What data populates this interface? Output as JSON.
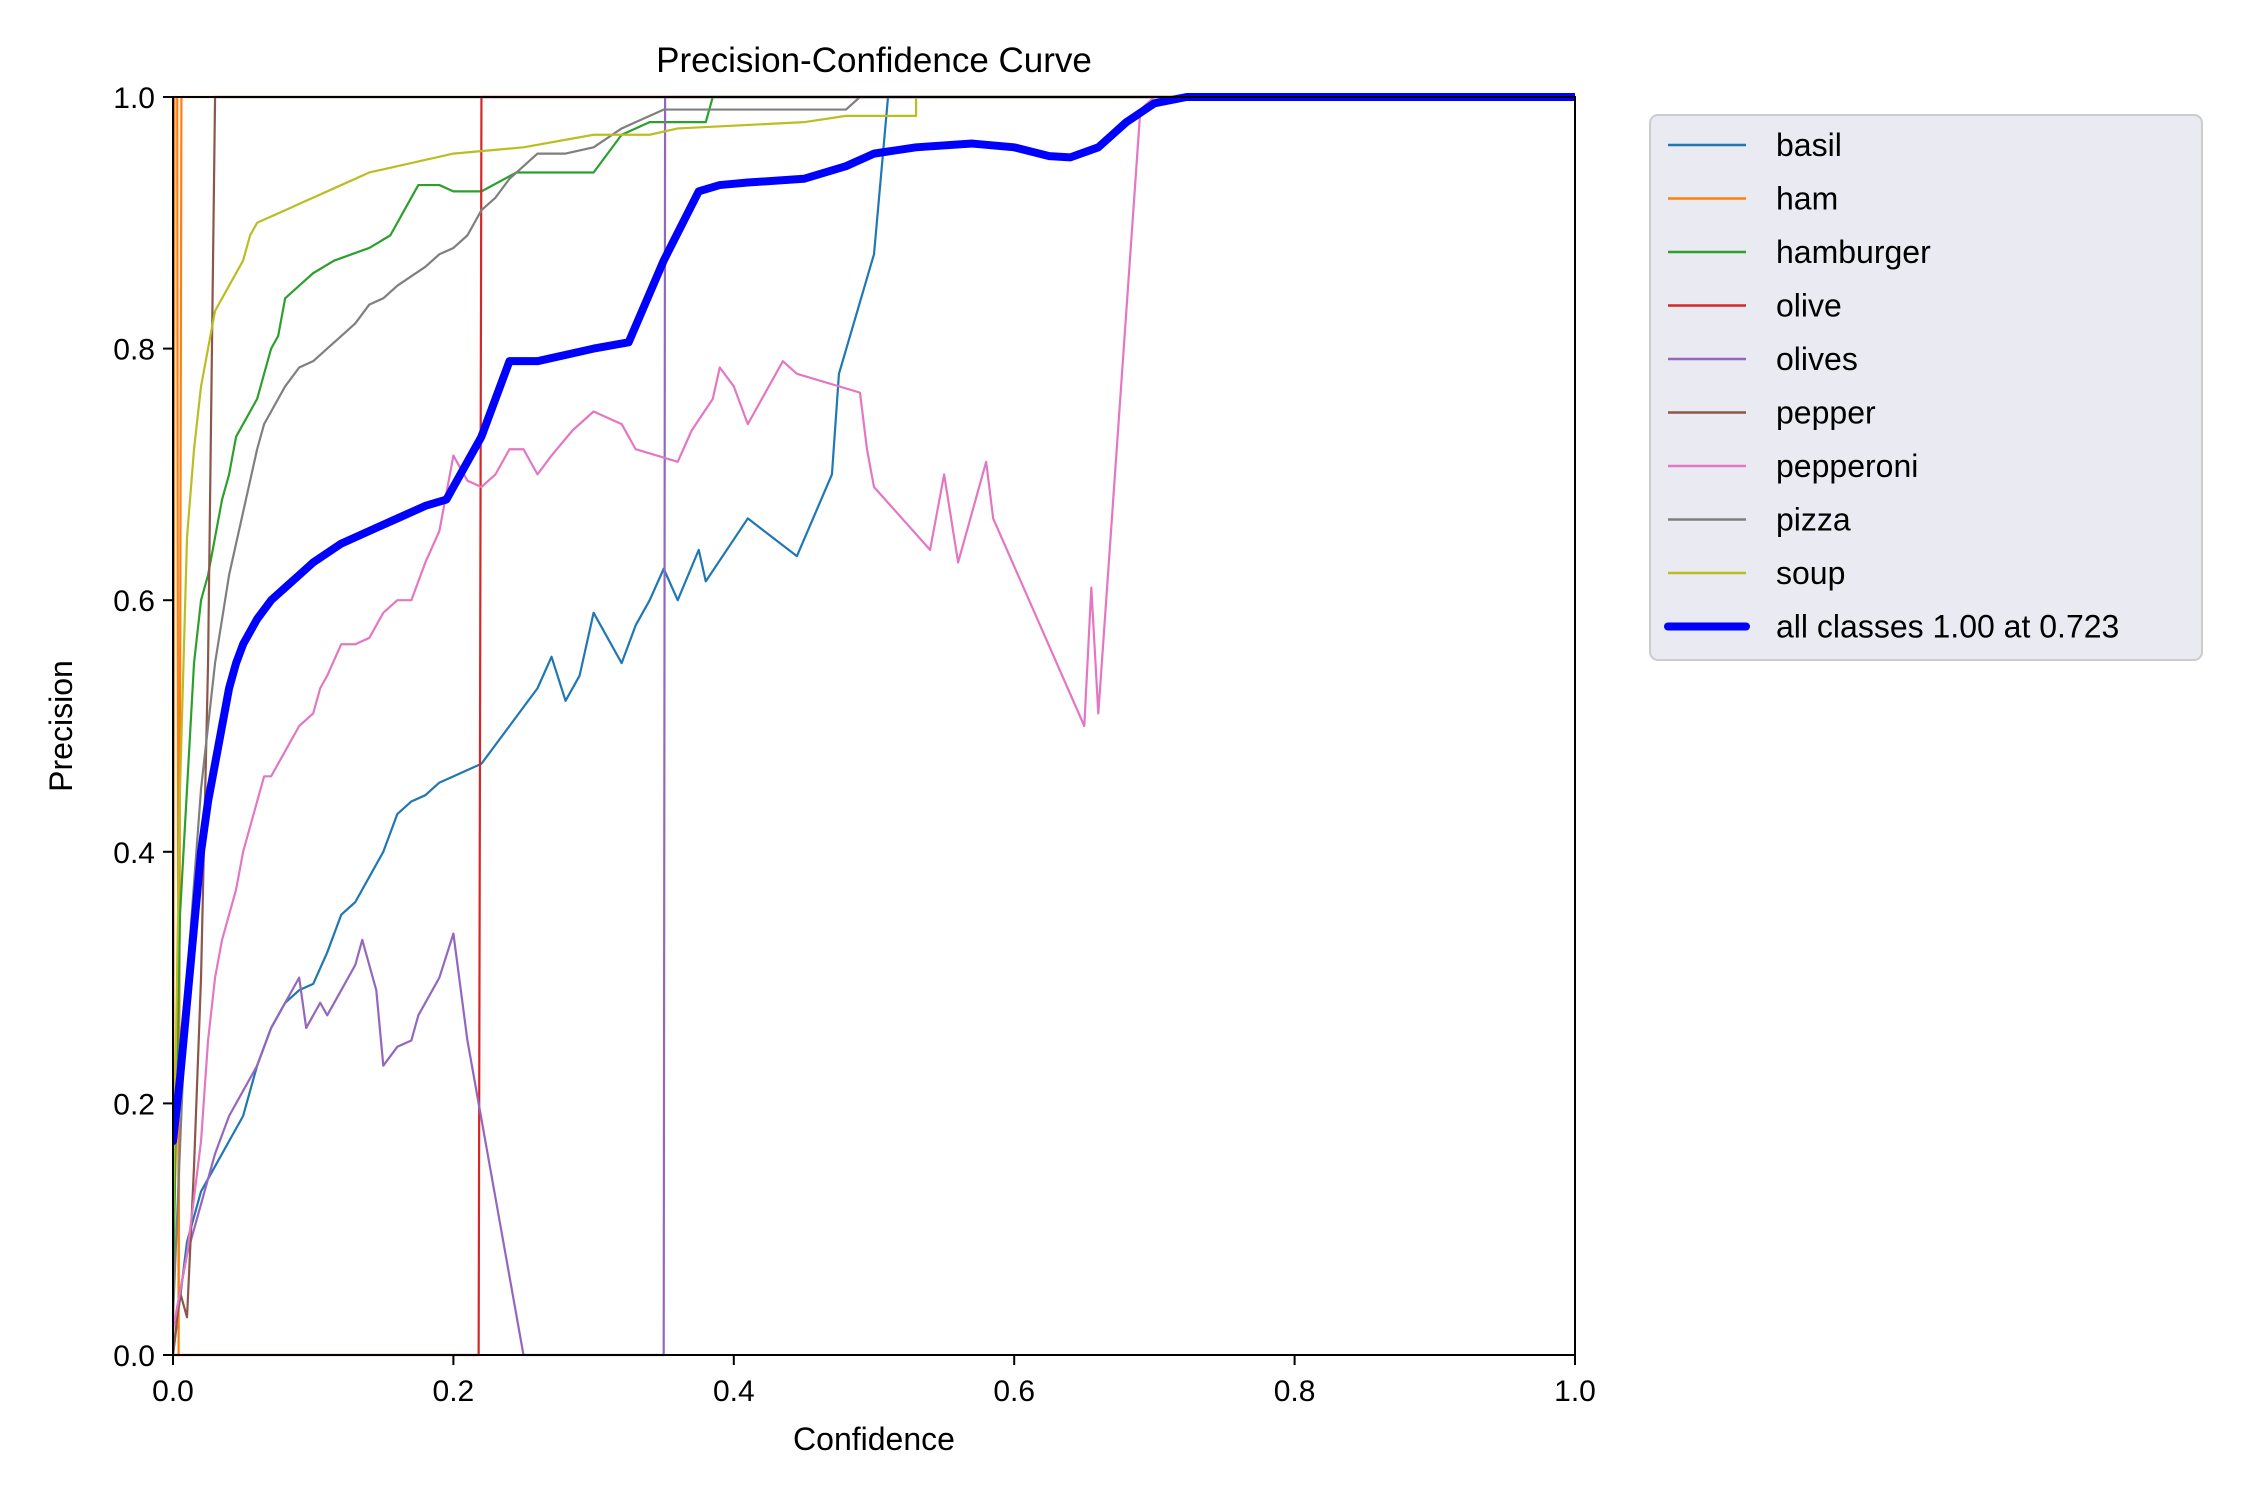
{
  "chart_data": {
    "type": "line",
    "title": "Precision-Confidence Curve",
    "xlabel": "Confidence",
    "ylabel": "Precision",
    "xlim": [
      0,
      1
    ],
    "ylim": [
      0,
      1
    ],
    "xticks": [
      "0.0",
      "0.2",
      "0.4",
      "0.6",
      "0.8",
      "1.0"
    ],
    "yticks": [
      "0.0",
      "0.2",
      "0.4",
      "0.6",
      "0.8",
      "1.0"
    ],
    "grid": false,
    "legend_position": "outside-top-right",
    "series": [
      {
        "name": "basil",
        "color": "#1f77b4",
        "points": [
          [
            0,
            0
          ],
          [
            0.01,
            0.09
          ],
          [
            0.02,
            0.13
          ],
          [
            0.03,
            0.15
          ],
          [
            0.04,
            0.17
          ],
          [
            0.05,
            0.19
          ],
          [
            0.06,
            0.23
          ],
          [
            0.07,
            0.26
          ],
          [
            0.08,
            0.28
          ],
          [
            0.09,
            0.29
          ],
          [
            0.1,
            0.295
          ],
          [
            0.11,
            0.32
          ],
          [
            0.12,
            0.35
          ],
          [
            0.13,
            0.36
          ],
          [
            0.14,
            0.38
          ],
          [
            0.15,
            0.4
          ],
          [
            0.16,
            0.43
          ],
          [
            0.17,
            0.44
          ],
          [
            0.18,
            0.445
          ],
          [
            0.19,
            0.455
          ],
          [
            0.2,
            0.46
          ],
          [
            0.22,
            0.47
          ],
          [
            0.24,
            0.5
          ],
          [
            0.26,
            0.53
          ],
          [
            0.27,
            0.555
          ],
          [
            0.28,
            0.52
          ],
          [
            0.29,
            0.54
          ],
          [
            0.3,
            0.59
          ],
          [
            0.32,
            0.55
          ],
          [
            0.33,
            0.58
          ],
          [
            0.34,
            0.6
          ],
          [
            0.35,
            0.625
          ],
          [
            0.36,
            0.6
          ],
          [
            0.375,
            0.64
          ],
          [
            0.38,
            0.615
          ],
          [
            0.41,
            0.665
          ],
          [
            0.445,
            0.635
          ],
          [
            0.47,
            0.7
          ],
          [
            0.475,
            0.78
          ],
          [
            0.5,
            0.875
          ],
          [
            0.51,
            1.0
          ],
          [
            1.0,
            1.0
          ]
        ]
      },
      {
        "name": "ham",
        "color": "#ff7f0e",
        "points": [
          [
            0,
            0
          ],
          [
            0.001,
            1.0
          ],
          [
            0.003,
            1.0
          ],
          [
            0.004,
            0
          ],
          [
            0.006,
            1.0
          ],
          [
            1.0,
            1.0
          ]
        ]
      },
      {
        "name": "hamburger",
        "color": "#2ca02c",
        "points": [
          [
            0,
            0.05
          ],
          [
            0.005,
            0.35
          ],
          [
            0.01,
            0.45
          ],
          [
            0.015,
            0.55
          ],
          [
            0.02,
            0.6
          ],
          [
            0.025,
            0.62
          ],
          [
            0.03,
            0.65
          ],
          [
            0.035,
            0.68
          ],
          [
            0.04,
            0.7
          ],
          [
            0.045,
            0.73
          ],
          [
            0.05,
            0.74
          ],
          [
            0.055,
            0.75
          ],
          [
            0.06,
            0.76
          ],
          [
            0.065,
            0.78
          ],
          [
            0.07,
            0.8
          ],
          [
            0.075,
            0.81
          ],
          [
            0.08,
            0.84
          ],
          [
            0.09,
            0.85
          ],
          [
            0.1,
            0.86
          ],
          [
            0.115,
            0.87
          ],
          [
            0.14,
            0.88
          ],
          [
            0.155,
            0.89
          ],
          [
            0.165,
            0.91
          ],
          [
            0.175,
            0.93
          ],
          [
            0.19,
            0.93
          ],
          [
            0.2,
            0.925
          ],
          [
            0.22,
            0.925
          ],
          [
            0.245,
            0.94
          ],
          [
            0.3,
            0.94
          ],
          [
            0.32,
            0.97
          ],
          [
            0.34,
            0.98
          ],
          [
            0.38,
            0.98
          ],
          [
            0.385,
            1.0
          ],
          [
            1.0,
            1.0
          ]
        ]
      },
      {
        "name": "olive",
        "color": "#d62728",
        "points": [
          [
            0,
            0
          ],
          [
            0.218,
            0
          ],
          [
            0.22,
            1.0
          ],
          [
            1.0,
            1.0
          ]
        ]
      },
      {
        "name": "olives",
        "color": "#9467bd",
        "points": [
          [
            0,
            0.02
          ],
          [
            0.01,
            0.08
          ],
          [
            0.02,
            0.12
          ],
          [
            0.03,
            0.16
          ],
          [
            0.04,
            0.19
          ],
          [
            0.05,
            0.21
          ],
          [
            0.06,
            0.23
          ],
          [
            0.07,
            0.26
          ],
          [
            0.08,
            0.28
          ],
          [
            0.09,
            0.3
          ],
          [
            0.095,
            0.26
          ],
          [
            0.105,
            0.28
          ],
          [
            0.11,
            0.27
          ],
          [
            0.12,
            0.29
          ],
          [
            0.13,
            0.31
          ],
          [
            0.135,
            0.33
          ],
          [
            0.145,
            0.29
          ],
          [
            0.15,
            0.23
          ],
          [
            0.16,
            0.245
          ],
          [
            0.17,
            0.25
          ],
          [
            0.175,
            0.27
          ],
          [
            0.19,
            0.3
          ],
          [
            0.2,
            0.335
          ],
          [
            0.21,
            0.25
          ],
          [
            0.25,
            0
          ],
          [
            0.35,
            0
          ],
          [
            0.351,
            1.0
          ],
          [
            1.0,
            1.0
          ]
        ]
      },
      {
        "name": "pepper",
        "color": "#8c564b",
        "points": [
          [
            0,
            0
          ],
          [
            0.005,
            0.05
          ],
          [
            0.01,
            0.03
          ],
          [
            0.015,
            0.15
          ],
          [
            0.02,
            0.3
          ],
          [
            0.025,
            0.55
          ],
          [
            0.03,
            1.0
          ],
          [
            1.0,
            1.0
          ]
        ]
      },
      {
        "name": "pepperoni",
        "color": "#e377c2",
        "points": [
          [
            0,
            0.02
          ],
          [
            0.01,
            0.08
          ],
          [
            0.02,
            0.17
          ],
          [
            0.025,
            0.25
          ],
          [
            0.03,
            0.3
          ],
          [
            0.035,
            0.33
          ],
          [
            0.04,
            0.35
          ],
          [
            0.045,
            0.37
          ],
          [
            0.05,
            0.4
          ],
          [
            0.055,
            0.42
          ],
          [
            0.06,
            0.44
          ],
          [
            0.065,
            0.46
          ],
          [
            0.07,
            0.46
          ],
          [
            0.075,
            0.47
          ],
          [
            0.085,
            0.49
          ],
          [
            0.09,
            0.5
          ],
          [
            0.1,
            0.51
          ],
          [
            0.105,
            0.53
          ],
          [
            0.11,
            0.54
          ],
          [
            0.12,
            0.565
          ],
          [
            0.13,
            0.565
          ],
          [
            0.14,
            0.57
          ],
          [
            0.15,
            0.59
          ],
          [
            0.16,
            0.6
          ],
          [
            0.17,
            0.6
          ],
          [
            0.18,
            0.63
          ],
          [
            0.19,
            0.655
          ],
          [
            0.2,
            0.715
          ],
          [
            0.21,
            0.695
          ],
          [
            0.22,
            0.69
          ],
          [
            0.23,
            0.7
          ],
          [
            0.24,
            0.72
          ],
          [
            0.25,
            0.72
          ],
          [
            0.26,
            0.7
          ],
          [
            0.27,
            0.715
          ],
          [
            0.285,
            0.735
          ],
          [
            0.3,
            0.75
          ],
          [
            0.32,
            0.74
          ],
          [
            0.33,
            0.72
          ],
          [
            0.36,
            0.71
          ],
          [
            0.37,
            0.735
          ],
          [
            0.385,
            0.76
          ],
          [
            0.39,
            0.785
          ],
          [
            0.4,
            0.77
          ],
          [
            0.41,
            0.74
          ],
          [
            0.425,
            0.77
          ],
          [
            0.435,
            0.79
          ],
          [
            0.445,
            0.78
          ],
          [
            0.49,
            0.765
          ],
          [
            0.495,
            0.72
          ],
          [
            0.5,
            0.69
          ],
          [
            0.52,
            0.665
          ],
          [
            0.54,
            0.64
          ],
          [
            0.55,
            0.7
          ],
          [
            0.56,
            0.63
          ],
          [
            0.58,
            0.71
          ],
          [
            0.585,
            0.665
          ],
          [
            0.65,
            0.5
          ],
          [
            0.655,
            0.61
          ],
          [
            0.66,
            0.51
          ],
          [
            0.69,
            0.99
          ],
          [
            0.7,
            1.0
          ],
          [
            1.0,
            1.0
          ]
        ]
      },
      {
        "name": "pizza",
        "color": "#7f7f7f",
        "points": [
          [
            0,
            0.03
          ],
          [
            0.01,
            0.3
          ],
          [
            0.02,
            0.45
          ],
          [
            0.03,
            0.55
          ],
          [
            0.04,
            0.62
          ],
          [
            0.05,
            0.67
          ],
          [
            0.06,
            0.72
          ],
          [
            0.065,
            0.74
          ],
          [
            0.07,
            0.75
          ],
          [
            0.08,
            0.77
          ],
          [
            0.09,
            0.785
          ],
          [
            0.1,
            0.79
          ],
          [
            0.11,
            0.8
          ],
          [
            0.12,
            0.81
          ],
          [
            0.13,
            0.82
          ],
          [
            0.14,
            0.835
          ],
          [
            0.15,
            0.84
          ],
          [
            0.16,
            0.85
          ],
          [
            0.18,
            0.865
          ],
          [
            0.19,
            0.875
          ],
          [
            0.2,
            0.88
          ],
          [
            0.21,
            0.89
          ],
          [
            0.22,
            0.91
          ],
          [
            0.23,
            0.92
          ],
          [
            0.24,
            0.935
          ],
          [
            0.25,
            0.945
          ],
          [
            0.26,
            0.955
          ],
          [
            0.28,
            0.955
          ],
          [
            0.3,
            0.96
          ],
          [
            0.32,
            0.975
          ],
          [
            0.34,
            0.985
          ],
          [
            0.35,
            0.99
          ],
          [
            0.48,
            0.99
          ],
          [
            0.49,
            1.0
          ],
          [
            1.0,
            1.0
          ]
        ]
      },
      {
        "name": "soup",
        "color": "#bcbd22",
        "points": [
          [
            0,
            0.1
          ],
          [
            0.005,
            0.45
          ],
          [
            0.01,
            0.65
          ],
          [
            0.015,
            0.72
          ],
          [
            0.02,
            0.77
          ],
          [
            0.025,
            0.8
          ],
          [
            0.03,
            0.83
          ],
          [
            0.04,
            0.85
          ],
          [
            0.05,
            0.87
          ],
          [
            0.055,
            0.89
          ],
          [
            0.06,
            0.9
          ],
          [
            0.07,
            0.905
          ],
          [
            0.08,
            0.91
          ],
          [
            0.09,
            0.915
          ],
          [
            0.1,
            0.92
          ],
          [
            0.12,
            0.93
          ],
          [
            0.14,
            0.94
          ],
          [
            0.16,
            0.945
          ],
          [
            0.2,
            0.955
          ],
          [
            0.25,
            0.96
          ],
          [
            0.3,
            0.97
          ],
          [
            0.34,
            0.97
          ],
          [
            0.36,
            0.975
          ],
          [
            0.45,
            0.98
          ],
          [
            0.48,
            0.985
          ],
          [
            0.53,
            0.985
          ],
          [
            0.53,
            1.0
          ],
          [
            1.0,
            1.0
          ]
        ]
      },
      {
        "name": "all classes 1.00 at 0.723",
        "color": "#0000ff",
        "bold": true,
        "points": [
          [
            0,
            0.17
          ],
          [
            0.005,
            0.22
          ],
          [
            0.01,
            0.28
          ],
          [
            0.015,
            0.34
          ],
          [
            0.02,
            0.4
          ],
          [
            0.025,
            0.44
          ],
          [
            0.03,
            0.47
          ],
          [
            0.035,
            0.5
          ],
          [
            0.04,
            0.53
          ],
          [
            0.045,
            0.55
          ],
          [
            0.05,
            0.565
          ],
          [
            0.06,
            0.585
          ],
          [
            0.07,
            0.6
          ],
          [
            0.08,
            0.61
          ],
          [
            0.09,
            0.62
          ],
          [
            0.1,
            0.63
          ],
          [
            0.12,
            0.645
          ],
          [
            0.14,
            0.655
          ],
          [
            0.16,
            0.665
          ],
          [
            0.18,
            0.675
          ],
          [
            0.195,
            0.68
          ],
          [
            0.2,
            0.69
          ],
          [
            0.22,
            0.73
          ],
          [
            0.24,
            0.79
          ],
          [
            0.26,
            0.79
          ],
          [
            0.3,
            0.8
          ],
          [
            0.325,
            0.805
          ],
          [
            0.35,
            0.87
          ],
          [
            0.375,
            0.925
          ],
          [
            0.39,
            0.93
          ],
          [
            0.41,
            0.932
          ],
          [
            0.45,
            0.935
          ],
          [
            0.48,
            0.945
          ],
          [
            0.5,
            0.955
          ],
          [
            0.53,
            0.96
          ],
          [
            0.57,
            0.963
          ],
          [
            0.6,
            0.96
          ],
          [
            0.625,
            0.953
          ],
          [
            0.64,
            0.952
          ],
          [
            0.66,
            0.96
          ],
          [
            0.68,
            0.98
          ],
          [
            0.7,
            0.995
          ],
          [
            0.723,
            1.0
          ],
          [
            1.0,
            1.0
          ]
        ]
      }
    ]
  }
}
